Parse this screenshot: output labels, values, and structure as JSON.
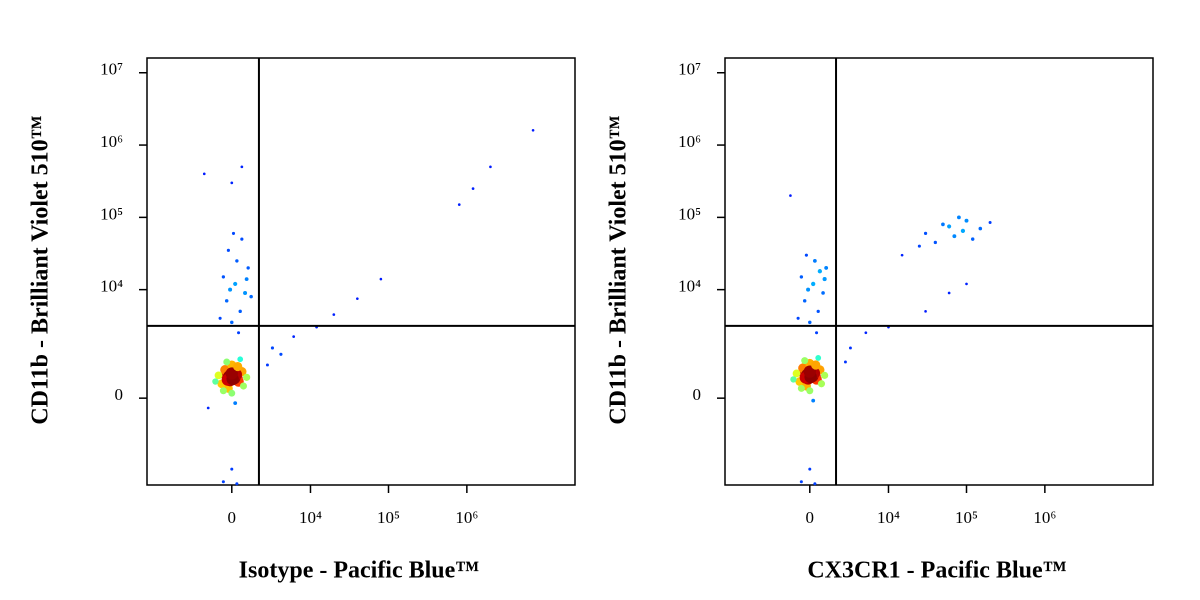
{
  "chart_data": [
    {
      "type": "scatter",
      "x_label": "Isotype - Pacific Blue™",
      "y_label": "CD11b - Brilliant Violet 510™",
      "xscale": "biexponential",
      "yscale": "biexponential",
      "xlim": [
        -12000,
        24000000
      ],
      "ylim": [
        -5000,
        16000000
      ],
      "xticks": [
        {
          "value": 0,
          "label": "0"
        },
        {
          "value": 10000,
          "label": "10⁴"
        },
        {
          "value": 100000,
          "label": "10⁵"
        },
        {
          "value": 1000000,
          "label": "10⁶"
        }
      ],
      "yticks": [
        {
          "value": 0,
          "label": "0"
        },
        {
          "value": 10000,
          "label": "10⁴"
        },
        {
          "value": 100000,
          "label": "10⁵"
        },
        {
          "value": 1000000,
          "label": "10⁶"
        },
        {
          "value": 10000000,
          "label": "10⁷"
        }
      ],
      "gate": {
        "x": 1770,
        "y": 3130
      },
      "x": [
        0,
        -300,
        300,
        -600,
        600,
        200,
        -200,
        100,
        -100,
        400,
        -400,
        0,
        700,
        -800,
        900,
        -1000,
        0,
        200,
        -300,
        500,
        150,
        -150,
        250,
        -250,
        50,
        0,
        -500,
        350,
        0,
        500,
        -300,
        800,
        200,
        -500,
        1000,
        300,
        -200,
        600,
        1200,
        -700,
        400,
        100,
        900,
        -100,
        0,
        -1800,
        600,
        3000,
        6000,
        12000,
        20000,
        40000,
        80000,
        800000,
        1200000,
        2000000,
        7000000,
        2500,
        4000,
        -500,
        300,
        0,
        -1500
      ],
      "y": [
        450,
        500,
        420,
        300,
        600,
        700,
        200,
        480,
        380,
        350,
        650,
        800,
        250,
        500,
        450,
        350,
        100,
        -100,
        900,
        1000,
        430,
        470,
        520,
        390,
        410,
        550,
        150,
        750,
        3500,
        5000,
        7000,
        9000,
        12000,
        15000,
        20000,
        25000,
        35000,
        50000,
        8000,
        4000,
        2500,
        60000,
        14000,
        10000,
        300000,
        400000,
        500000,
        1500,
        2200,
        3000,
        4500,
        7500,
        14000,
        150000,
        250000,
        500000,
        1600000,
        800,
        1200,
        -4500,
        -4800,
        -3000,
        -200
      ]
    },
    {
      "type": "scatter",
      "x_label": "CX3CR1 - Pacific Blue™",
      "y_label": "CD11b - Brilliant Violet 510™",
      "xscale": "biexponential",
      "yscale": "biexponential",
      "xlim": [
        -12000,
        24000000
      ],
      "ylim": [
        -5000,
        16000000
      ],
      "xticks": [
        {
          "value": 0,
          "label": "0"
        },
        {
          "value": 10000,
          "label": "10⁴"
        },
        {
          "value": 100000,
          "label": "10⁵"
        },
        {
          "value": 1000000,
          "label": "10⁶"
        }
      ],
      "yticks": [
        {
          "value": 0,
          "label": "0"
        },
        {
          "value": 10000,
          "label": "10⁴"
        },
        {
          "value": 100000,
          "label": "10⁵"
        },
        {
          "value": 1000000,
          "label": "10⁶"
        },
        {
          "value": 10000000,
          "label": "10⁷"
        }
      ],
      "gate": {
        "x": 1700,
        "y": 3130
      },
      "x": [
        0,
        -300,
        300,
        -600,
        600,
        200,
        -200,
        100,
        -100,
        400,
        -400,
        0,
        700,
        -800,
        900,
        -1000,
        0,
        200,
        -300,
        500,
        150,
        -150,
        250,
        -250,
        50,
        0,
        -500,
        350,
        0,
        500,
        -300,
        800,
        200,
        -500,
        1000,
        300,
        -200,
        600,
        -700,
        400,
        900,
        -100,
        -1200,
        30000,
        50000,
        70000,
        100000,
        150000,
        40000,
        200000,
        80000,
        25000,
        120000,
        60000,
        90000,
        15000,
        3000,
        5000,
        10000,
        30000,
        60000,
        100000,
        2500,
        -500,
        300,
        0
      ],
      "y": [
        500,
        550,
        470,
        350,
        650,
        750,
        250,
        520,
        420,
        400,
        700,
        850,
        300,
        550,
        500,
        400,
        150,
        -50,
        950,
        1050,
        480,
        510,
        560,
        440,
        460,
        600,
        200,
        800,
        3500,
        5000,
        7000,
        9000,
        12000,
        15000,
        20000,
        25000,
        30000,
        18000,
        4000,
        2500,
        14000,
        10000,
        200000,
        60000,
        80000,
        55000,
        90000,
        70000,
        45000,
        85000,
        100000,
        40000,
        50000,
        75000,
        65000,
        30000,
        1500,
        2500,
        3000,
        5000,
        9000,
        12000,
        900,
        -4500,
        -4800,
        -3000
      ]
    }
  ]
}
